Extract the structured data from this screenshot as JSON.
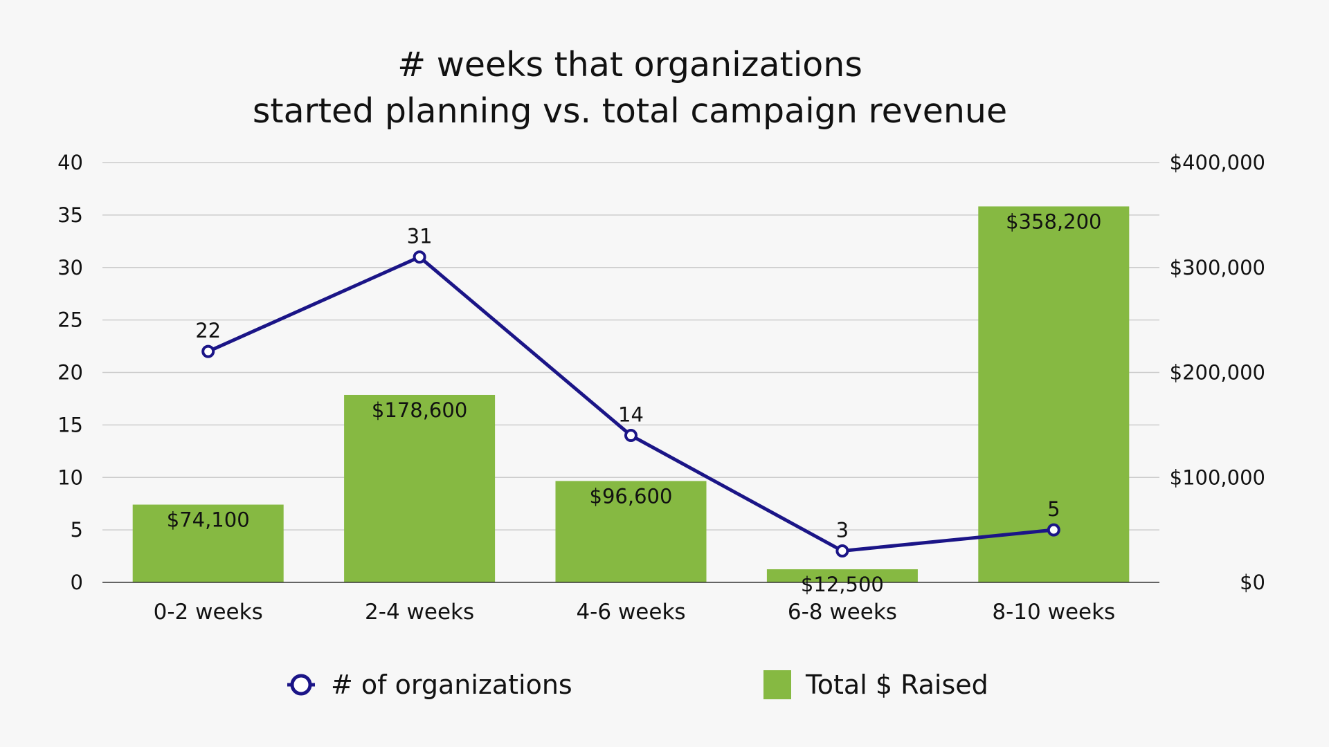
{
  "chart_data": {
    "type": "bar",
    "title": [
      "# weeks that organizations",
      "started planning vs. total campaign revenue"
    ],
    "categories": [
      "0-2 weeks",
      "2-4 weeks",
      "4-6 weeks",
      "6-8 weeks",
      "8-10 weeks"
    ],
    "series": [
      {
        "name": "Total $ Raised",
        "type": "bar",
        "axis": "right",
        "values": [
          74100,
          178600,
          96600,
          12500,
          358200
        ],
        "labels": [
          "$74,100",
          "$178,600",
          "$96,600",
          "$12,500",
          "$358,200"
        ],
        "color": "#86b942"
      },
      {
        "name": "# of organizations",
        "type": "line",
        "axis": "left",
        "values": [
          22,
          31,
          14,
          3,
          5
        ],
        "labels": [
          "22",
          "31",
          "14",
          "3",
          "5"
        ],
        "color": "#1b1587"
      }
    ],
    "left_axis": {
      "ylim": [
        0,
        40
      ],
      "ticks": [
        0,
        5,
        10,
        15,
        20,
        25,
        30,
        35,
        40
      ],
      "tick_labels": [
        "0",
        "5",
        "10",
        "15",
        "20",
        "25",
        "30",
        "35",
        "40"
      ]
    },
    "right_axis": {
      "ylim": [
        0,
        400000
      ],
      "ticks": [
        0,
        100000,
        200000,
        300000,
        400000
      ],
      "tick_labels": [
        "$0",
        "$100,000",
        "$200,000",
        "$300,000",
        "$400,000"
      ]
    },
    "grid": true,
    "legend_position": "bottom",
    "legend": [
      {
        "label": "# of organizations",
        "type": "line",
        "color": "#1b1587"
      },
      {
        "label": "Total $ Raised",
        "type": "bar",
        "color": "#86b942"
      }
    ]
  }
}
